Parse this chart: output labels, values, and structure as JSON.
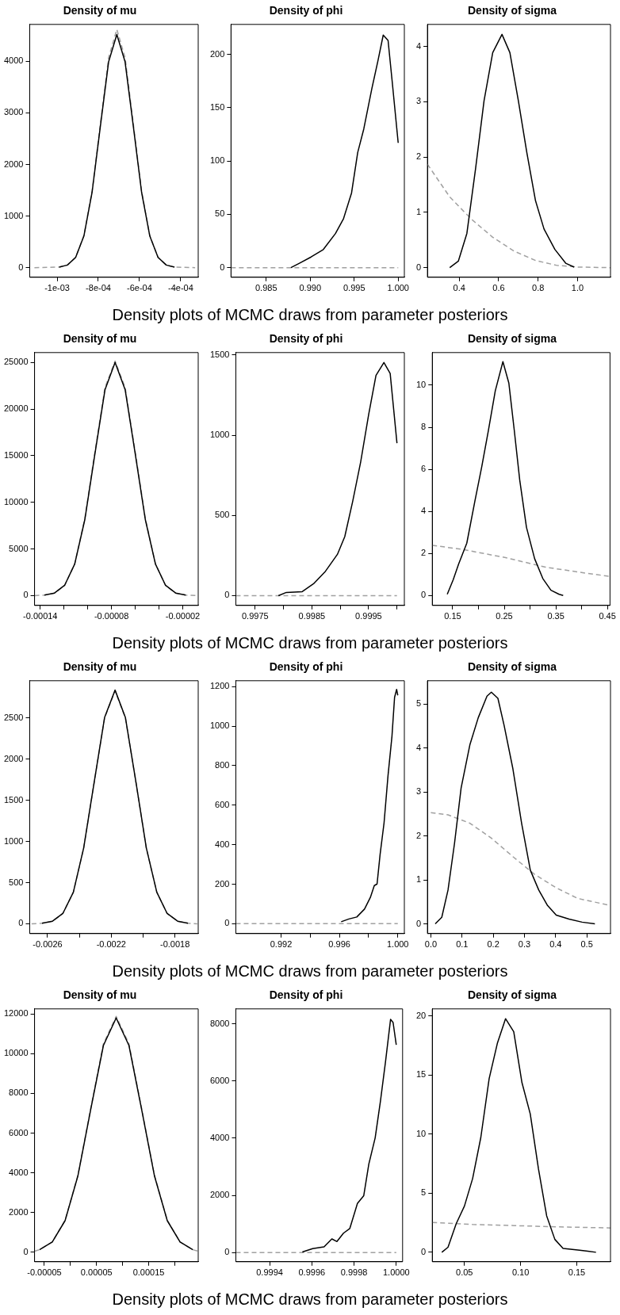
{
  "chart_data": [
    {
      "type": "line",
      "title": "Density of mu",
      "annotations": [
        "Density plots of MCMC draws from parameter posteriors"
      ],
      "xlim": [
        -0.001133,
        -0.000315
      ],
      "xticks": [
        {
          "value": -0.001,
          "label": "-1e-03"
        },
        {
          "value": -0.0008,
          "label": "-8e-04"
        },
        {
          "value": -0.0006,
          "label": "-6e-04"
        },
        {
          "value": -0.0004,
          "label": "-4e-04"
        }
      ],
      "ylim": [
        -187,
        4716
      ],
      "yticks": [
        0,
        1000,
        2000,
        3000,
        4000
      ],
      "series": [
        {
          "color": "#000000",
          "x": [
            -0.00099,
            -0.00095,
            -0.00091,
            -0.00087,
            -0.00083,
            -0.00079,
            -0.00075,
            -0.00071,
            -0.00067,
            -0.00063,
            -0.00059,
            -0.00055,
            -0.00051,
            -0.00047,
            -0.00043
          ],
          "values": [
            10,
            50,
            198,
            612,
            1466,
            2740,
            3990,
            4520,
            3990,
            2740,
            1466,
            612,
            198,
            50,
            10
          ]
        },
        {
          "color": "#a0a0a0",
          "line_style": "dashed",
          "x": [
            -0.00111,
            -0.00099,
            -0.00095,
            -0.00091,
            -0.00087,
            -0.00083,
            -0.00079,
            -0.00075,
            -0.00071,
            -0.00067,
            -0.00063,
            -0.00059,
            -0.00055,
            -0.00051,
            -0.00047,
            -0.00043,
            -0.00033
          ],
          "values": [
            0,
            10,
            50,
            200,
            620,
            1490,
            2790,
            4070,
            4620,
            4070,
            2790,
            1490,
            620,
            200,
            50,
            10,
            0
          ]
        }
      ]
    },
    {
      "type": "line",
      "title": "Density of phi",
      "xlim": [
        0.981,
        1.0007
      ],
      "xticks": [
        0.985,
        {
          "value": 0.99,
          "label": "0.990"
        },
        0.995,
        {
          "value": 1,
          "label": "1.000"
        }
      ],
      "ylim": [
        -9,
        228
      ],
      "yticks": [
        0,
        50,
        100,
        150,
        200
      ],
      "series": [
        {
          "color": "#000000",
          "x": [
            0.98781,
            0.98873,
            0.9901,
            0.99149,
            0.99287,
            0.99379,
            0.9947,
            0.9954,
            0.99609,
            0.99701,
            0.9977,
            0.9983,
            0.99885,
            0.9993,
            1
          ],
          "values": [
            0,
            4,
            10,
            17,
            32,
            46,
            70,
            108,
            130,
            168,
            194,
            218,
            213,
            176,
            117
          ]
        },
        {
          "color": "#a0a0a0",
          "line_style": "dashed",
          "x": [
            0.981,
            1
          ],
          "values": [
            0,
            0
          ]
        }
      ]
    },
    {
      "type": "line",
      "title": "Density of sigma",
      "xlim": [
        0.239,
        1.167
      ],
      "xticks": [
        0.4,
        0.6,
        0.8,
        {
          "value": 1,
          "label": "1.0"
        }
      ],
      "ylim": [
        -0.174,
        4.4
      ],
      "yticks": [
        0,
        1,
        2,
        3,
        4
      ],
      "series": [
        {
          "color": "#000000",
          "x": [
            0.352,
            0.396,
            0.439,
            0.483,
            0.526,
            0.57,
            0.617,
            0.657,
            0.7,
            0.743,
            0.787,
            0.83,
            0.885,
            0.94,
            0.983
          ],
          "values": [
            0,
            0.12,
            0.62,
            1.79,
            3.02,
            3.89,
            4.22,
            3.89,
            3.02,
            2.08,
            1.21,
            0.7,
            0.33,
            0.08,
            0.01
          ]
        },
        {
          "color": "#a0a0a0",
          "line_style": "dashed",
          "x": [
            0.239,
            0.352,
            0.461,
            0.57,
            0.678,
            0.787,
            0.896,
            1.005,
            1.167
          ],
          "values": [
            1.87,
            1.28,
            0.88,
            0.55,
            0.3,
            0.13,
            0.04,
            0.01,
            0
          ]
        }
      ]
    },
    {
      "type": "line",
      "title": "Density of mu",
      "annotations": [
        "Density plots of MCMC draws from parameter posteriors"
      ],
      "xlim": [
        -0.0001448,
        -7e-06
      ],
      "xticks": [
        -0.00014,
        {
          "value": -0.00012,
          "label": null
        },
        {
          "value": -0.0001,
          "label": null
        },
        {
          "value": -8e-05,
          "label": "-0.00008"
        },
        {
          "value": -6e-05,
          "label": null
        },
        {
          "value": -4e-05,
          "label": null
        },
        {
          "value": -2e-05,
          "label": "-0.00002"
        }
      ],
      "ylim": [
        -1054,
        26054
      ],
      "yticks": [
        0,
        5000,
        10000,
        15000,
        20000,
        25000
      ],
      "series": [
        {
          "color": "#000000",
          "x": [
            -0.0001365,
            -0.000128,
            -0.0001195,
            -0.000111,
            -0.0001025,
            -9.4e-05,
            -8.55e-05,
            -7.7e-05,
            -6.85e-05,
            -6e-05,
            -5.15e-05,
            -4.3e-05,
            -3.45e-05,
            -2.6e-05,
            -1.75e-05
          ],
          "values": [
            55,
            275,
            1100,
            3375,
            8125,
            15175,
            22060,
            25000,
            22060,
            15175,
            8125,
            3375,
            1100,
            275,
            55
          ]
        },
        {
          "color": "#a0a0a0",
          "line_style": "dashed",
          "x": [
            -0.0001448,
            -0.0001365,
            -0.000128,
            -0.0001195,
            -0.000111,
            -0.0001025,
            -9.4e-05,
            -8.55e-05,
            -7.7e-05,
            -6.85e-05,
            -6e-05,
            -5.15e-05,
            -4.3e-05,
            -3.45e-05,
            -2.6e-05,
            -1.75e-05,
            -7e-06
          ],
          "values": [
            0,
            50,
            260,
            1080,
            3400,
            8250,
            15400,
            22300,
            25150,
            22300,
            15400,
            8250,
            3400,
            1080,
            260,
            50,
            0
          ]
        }
      ]
    },
    {
      "type": "line",
      "title": "Density of phi",
      "xlim": [
        0.99716,
        1.00013
      ],
      "xticks": [
        0.9975,
        {
          "value": 0.998,
          "label": null
        },
        0.9985,
        {
          "value": 0.999,
          "label": null
        },
        0.9995,
        {
          "value": 1,
          "label": null
        }
      ],
      "ylim": [
        -61,
        1515
      ],
      "yticks": [
        0,
        500,
        1000,
        1500
      ],
      "series": [
        {
          "color": "#000000",
          "x": [
            0.99791,
            0.99805,
            0.99833,
            0.99853,
            0.99874,
            0.99895,
            0.99908,
            0.99922,
            0.99936,
            0.9995,
            0.99963,
            0.99977,
            0.99988,
            1
          ],
          "values": [
            0,
            20,
            25,
            74,
            152,
            257,
            368,
            588,
            833,
            1127,
            1373,
            1453,
            1385,
            950
          ]
        },
        {
          "color": "#a0a0a0",
          "line_style": "dashed",
          "x": [
            0.99716,
            1
          ],
          "values": [
            0,
            0
          ]
        }
      ]
    },
    {
      "type": "line",
      "title": "Density of sigma",
      "xlim": [
        0.1105,
        0.455
      ],
      "xticks": [
        0.15,
        {
          "value": 0.2,
          "label": null
        },
        0.25,
        {
          "value": 0.3,
          "label": null
        },
        0.35,
        {
          "value": 0.4,
          "label": null
        },
        0.45
      ],
      "ylim": [
        -0.47,
        11.55
      ],
      "yticks": [
        0,
        2,
        4,
        6,
        8,
        10
      ],
      "series": [
        {
          "color": "#000000",
          "x": [
            0.1395,
            0.151,
            0.1616,
            0.1774,
            0.1931,
            0.2063,
            0.2194,
            0.2326,
            0.2474,
            0.2589,
            0.2694,
            0.28,
            0.2931,
            0.3089,
            0.3247,
            0.3405,
            0.3563,
            0.3642
          ],
          "values": [
            0.06,
            0.75,
            1.5,
            2.49,
            4.49,
            6.11,
            7.86,
            9.73,
            11.12,
            10.1,
            7.86,
            5.49,
            3.24,
            1.75,
            0.81,
            0.25,
            0.06,
            0
          ]
        },
        {
          "color": "#a0a0a0",
          "line_style": "dashed",
          "x": [
            0.1105,
            0.172,
            0.251,
            0.33,
            0.409,
            0.455
          ],
          "values": [
            2.39,
            2.18,
            1.81,
            1.35,
            1.06,
            0.91
          ]
        }
      ]
    },
    {
      "type": "line",
      "title": "Density of mu",
      "annotations": [
        "Density plots of MCMC draws from parameter posteriors"
      ],
      "xlim": [
        -0.002712,
        -0.001654
      ],
      "xticks": [
        -0.0026,
        {
          "value": -0.0024,
          "label": null
        },
        -0.0022,
        {
          "value": -0.002,
          "label": null
        },
        -0.0018
      ],
      "ylim": [
        -119,
        2953
      ],
      "yticks": [
        0,
        500,
        1000,
        1500,
        2000,
        2500
      ],
      "series": [
        {
          "color": "#000000",
          "x": [
            -0.002635,
            -0.002569,
            -0.002504,
            -0.002438,
            -0.002373,
            -0.002307,
            -0.002242,
            -0.002176,
            -0.002111,
            -0.002045,
            -0.00198,
            -0.001914,
            -0.001849,
            -0.001783,
            -0.001718
          ],
          "values": [
            6,
            31,
            125,
            383,
            923,
            1723,
            2505,
            2839,
            2505,
            1723,
            923,
            383,
            125,
            31,
            6
          ]
        },
        {
          "color": "#a0a0a0",
          "line_style": "dashed",
          "x": [
            -0.0027,
            -0.002635,
            -0.002569,
            -0.002504,
            -0.002438,
            -0.002373,
            -0.002307,
            -0.002242,
            -0.002176,
            -0.002111,
            -0.002045,
            -0.00198,
            -0.001914,
            -0.001849,
            -0.001783,
            -0.001718,
            -0.00166
          ],
          "values": [
            0,
            6,
            31,
            125,
            383,
            920,
            1718,
            2498,
            2830,
            2498,
            1718,
            920,
            383,
            125,
            31,
            6,
            0
          ]
        }
      ]
    },
    {
      "type": "line",
      "title": "Density of phi",
      "xlim": [
        0.9889,
        1.00045
      ],
      "xticks": [
        0.992,
        {
          "value": 0.994,
          "label": null
        },
        0.996,
        {
          "value": 0.998,
          "label": null
        },
        {
          "value": 1,
          "label": "1.000"
        }
      ],
      "ylim": [
        -50,
        1230
      ],
      "yticks": [
        0,
        200,
        400,
        600,
        800,
        1000,
        1200
      ],
      "series": [
        {
          "color": "#000000",
          "x": [
            0.99612,
            0.99665,
            0.99719,
            0.99772,
            0.99812,
            0.99839,
            0.99858,
            0.99879,
            0.99906,
            0.99933,
            0.9996,
            0.99978,
            0.99992,
            1
          ],
          "values": [
            10,
            24,
            34,
            74,
            133,
            193,
            201,
            352,
            511,
            749,
            948,
            1146,
            1186,
            1156
          ]
        },
        {
          "color": "#a0a0a0",
          "line_style": "dashed",
          "x": [
            0.9889,
            1
          ],
          "values": [
            0,
            0
          ]
        }
      ]
    },
    {
      "type": "line",
      "title": "Density of sigma",
      "xlim": [
        -0.011,
        0.576
      ],
      "xticks": [
        {
          "value": 0,
          "label": "0.0"
        },
        0.1,
        0.2,
        0.3,
        0.4,
        0.5
      ],
      "ylim": [
        -0.22,
        5.53
      ],
      "yticks": [
        0,
        1,
        2,
        3,
        4,
        5
      ],
      "series": [
        {
          "color": "#000000",
          "x": [
            0.014,
            0.035,
            0.055,
            0.076,
            0.097,
            0.125,
            0.152,
            0.18,
            0.194,
            0.215,
            0.235,
            0.263,
            0.291,
            0.319,
            0.346,
            0.374,
            0.402,
            0.443,
            0.485,
            0.526
          ],
          "values": [
            0,
            0.15,
            0.77,
            1.84,
            3.09,
            4.07,
            4.69,
            5.18,
            5.27,
            5.13,
            4.51,
            3.53,
            2.29,
            1.22,
            0.77,
            0.42,
            0.2,
            0.11,
            0.04,
            0
          ]
        },
        {
          "color": "#a0a0a0",
          "line_style": "dashed",
          "x": [
            0,
            0.055,
            0.125,
            0.194,
            0.263,
            0.332,
            0.402,
            0.471,
            0.575
          ],
          "values": [
            2.53,
            2.48,
            2.29,
            1.95,
            1.53,
            1.13,
            0.82,
            0.58,
            0.42
          ]
        }
      ]
    },
    {
      "type": "line",
      "title": "Density of mu",
      "annotations": [
        "Density plots of MCMC draws from parameter posteriors"
      ],
      "xlim": [
        -6.88e-05,
        0.000245
      ],
      "xticks": [
        {
          "value": -5e-05,
          "label": "-0.00005"
        },
        {
          "value": 0,
          "label": null
        },
        {
          "value": 5e-05,
          "label": "0.00005"
        },
        {
          "value": 0.0001,
          "label": null
        },
        0.00015,
        {
          "value": 0.0002,
          "label": null
        }
      ],
      "ylim": [
        -474,
        12257
      ],
      "yticks": [
        0,
        2000,
        4000,
        6000,
        8000,
        10000,
        12000
      ],
      "series": [
        {
          "color": "#000000",
          "x": [
            -5.93e-05,
            -3.48e-05,
            -1.03e-05,
            1.42e-05,
            3.87e-05,
            6.32e-05,
            8.77e-05,
            0.0001122,
            0.0001367,
            0.0001612,
            0.0001857,
            0.0002102,
            0.0002347
          ],
          "values": [
            130,
            519,
            1593,
            3835,
            7163,
            10414,
            11800,
            10414,
            7163,
            3835,
            1593,
            519,
            130
          ]
        },
        {
          "color": "#a0a0a0",
          "line_style": "dashed",
          "x": [
            -6.88e-05,
            -5.93e-05,
            -3.48e-05,
            -1.03e-05,
            1.42e-05,
            3.87e-05,
            6.32e-05,
            8.77e-05,
            0.0001122,
            0.0001367,
            0.0001612,
            0.0001857,
            0.0002102,
            0.0002347,
            0.000245
          ],
          "values": [
            60,
            132,
            525,
            1610,
            3870,
            7220,
            10500,
            11880,
            10500,
            7220,
            3870,
            1610,
            525,
            132,
            60
          ]
        }
      ]
    },
    {
      "type": "line",
      "title": "Density of phi",
      "xlim": [
        0.99924,
        1.00003
      ],
      "xticks": [
        0.9994,
        0.9996,
        0.9998,
        {
          "value": 1,
          "label": "1.0000"
        }
      ],
      "ylim": [
        -321,
        8523
      ],
      "yticks": [
        0,
        2000,
        4000,
        6000,
        8000
      ],
      "series": [
        {
          "color": "#000000",
          "x": [
            0.999555,
            0.999604,
            0.999658,
            0.999695,
            0.999719,
            0.99975,
            0.99978,
            0.999816,
            0.999846,
            0.99987,
            0.9999,
            0.999925,
            0.999949,
            0.999973,
            0.999985,
            1
          ],
          "values": [
            18,
            138,
            202,
            477,
            385,
            679,
            844,
            1716,
            1991,
            3092,
            4009,
            5294,
            6670,
            8156,
            8046,
            7266
          ]
        },
        {
          "color": "#a0a0a0",
          "line_style": "dashed",
          "x": [
            0.99924,
            1
          ],
          "values": [
            0,
            0
          ]
        }
      ]
    },
    {
      "type": "line",
      "title": "Density of sigma",
      "xlim": [
        0.0214,
        0.18
      ],
      "xticks": [
        0.05,
        {
          "value": 0.1,
          "label": "0.10"
        },
        0.15
      ],
      "ylim": [
        -0.8,
        20.6
      ],
      "yticks": [
        0,
        5,
        10,
        15,
        20
      ],
      "series": [
        {
          "color": "#000000",
          "x": [
            0.0299,
            0.0354,
            0.0427,
            0.05,
            0.0573,
            0.0646,
            0.072,
            0.0793,
            0.0866,
            0.0939,
            0.1012,
            0.1086,
            0.1159,
            0.1232,
            0.1305,
            0.1378,
            0.1525,
            0.1598,
            0.1671
          ],
          "values": [
            0,
            0.43,
            2.42,
            3.91,
            6.24,
            9.72,
            14.69,
            17.68,
            19.77,
            18.67,
            14.36,
            11.71,
            7.06,
            3.08,
            1.09,
            0.33,
            0.17,
            0.1,
            0
          ]
        },
        {
          "color": "#a0a0a0",
          "line_style": "dashed",
          "x": [
            0.0214,
            0.0573,
            0.0939,
            0.1305,
            0.18
          ],
          "values": [
            2.52,
            2.35,
            2.26,
            2.16,
            2.06
          ]
        }
      ]
    }
  ]
}
